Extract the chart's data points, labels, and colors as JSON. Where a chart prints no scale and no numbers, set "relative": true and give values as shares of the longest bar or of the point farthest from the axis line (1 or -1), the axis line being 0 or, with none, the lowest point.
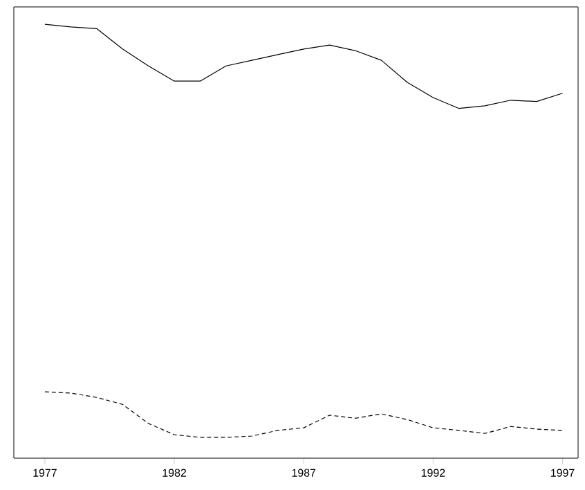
{
  "chart_data": {
    "type": "line",
    "relative": true,
    "x": [
      1977,
      1978,
      1979,
      1980,
      1981,
      1982,
      1983,
      1984,
      1985,
      1986,
      1987,
      1988,
      1989,
      1990,
      1991,
      1992,
      1993,
      1994,
      1995,
      1996,
      1997
    ],
    "xlim": [
      1975.8,
      1997.6
    ],
    "xticks": [
      1977,
      1982,
      1987,
      1992,
      1997
    ],
    "grid": false,
    "series": [
      {
        "color": "#000000",
        "line_style": "solid",
        "values": [
          1.0,
          0.994,
          0.99,
          0.943,
          0.904,
          0.869,
          0.869,
          0.904,
          0.917,
          0.93,
          0.943,
          0.952,
          0.939,
          0.917,
          0.866,
          0.831,
          0.806,
          0.812,
          0.825,
          0.822,
          0.841
        ]
      },
      {
        "color": "#000000",
        "line_style": "dashed",
        "values": [
          0.153,
          0.15,
          0.14,
          0.124,
          0.08,
          0.054,
          0.048,
          0.048,
          0.051,
          0.064,
          0.07,
          0.099,
          0.092,
          0.102,
          0.089,
          0.07,
          0.064,
          0.057,
          0.073,
          0.067,
          0.064
        ]
      }
    ]
  }
}
